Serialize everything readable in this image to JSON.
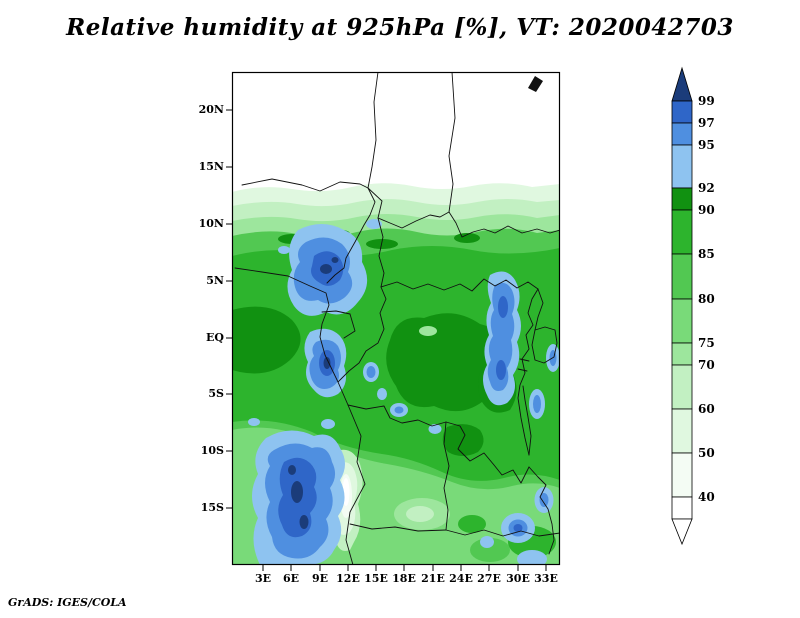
{
  "title": "Relative humidity at 925hPa [%], VT: 2020042703",
  "footer": "GrADS: IGES/COLA",
  "map": {
    "lat_ticks": [
      "20N",
      "15N",
      "10N",
      "5N",
      "EQ",
      "5S",
      "10S",
      "15S"
    ],
    "lon_ticks": [
      "3E",
      "6E",
      "9E",
      "12E",
      "15E",
      "18E",
      "21E",
      "24E",
      "27E",
      "30E",
      "33E"
    ]
  },
  "colorbar": {
    "labels": [
      "99",
      "97",
      "95",
      "92",
      "90",
      "85",
      "80",
      "75",
      "70",
      "60",
      "50",
      "40"
    ]
  },
  "palette": {
    "white": "#ffffff",
    "p40": "#f4fcf4",
    "p50": "#e0f8e0",
    "p60": "#c2f0c2",
    "p70": "#9de69d",
    "p75": "#79da79",
    "p80": "#52c852",
    "p85": "#2db42d",
    "p90": "#119111",
    "p92": "#8ec3f0",
    "p95": "#4f8fe0",
    "p97": "#2f66c8",
    "p99": "#1b3c7a",
    "border": "#111111"
  },
  "chart_data": {
    "type": "heatmap",
    "title": "Relative humidity at 925hPa [%], VT: 2020042703",
    "variable": "Relative humidity",
    "pressure_level_hPa": 925,
    "units": "%",
    "valid_time": "2020042703",
    "x_axis": {
      "label": "longitude",
      "ticks": [
        "3E",
        "6E",
        "9E",
        "12E",
        "15E",
        "18E",
        "21E",
        "24E",
        "27E",
        "30E",
        "33E"
      ],
      "range_deg_east": [
        0,
        34.5
      ]
    },
    "y_axis": {
      "label": "latitude",
      "ticks": [
        "20N",
        "15N",
        "10N",
        "5N",
        "EQ",
        "5S",
        "10S",
        "15S"
      ],
      "range_deg_north": [
        -20,
        23.3
      ]
    },
    "contour_levels": [
      40,
      50,
      60,
      70,
      75,
      80,
      85,
      90,
      92,
      95,
      97,
      99
    ],
    "band_colors": [
      {
        "range": "<40",
        "color": "#ffffff"
      },
      {
        "range": "40-50",
        "color": "#f4fcf4"
      },
      {
        "range": "50-60",
        "color": "#e0f8e0"
      },
      {
        "range": "60-70",
        "color": "#c2f0c2"
      },
      {
        "range": "70-75",
        "color": "#9de69d"
      },
      {
        "range": "75-80",
        "color": "#79da79"
      },
      {
        "range": "80-85",
        "color": "#52c852"
      },
      {
        "range": "85-90",
        "color": "#2db42d"
      },
      {
        "range": "90-92",
        "color": "#119111"
      },
      {
        "range": "92-95",
        "color": "#8ec3f0"
      },
      {
        "range": "95-97",
        "color": "#4f8fe0"
      },
      {
        "range": "97-99",
        "color": "#2f66c8"
      },
      {
        "range": ">99",
        "color": "#1b3c7a"
      }
    ],
    "legend_position": "right",
    "grid": false,
    "map_overlay": "African country borders, 0-34E / 20S-23N",
    "notable_features": [
      "RH > 95% (blue) over SE Nigeria / Cameroon highlands (~9-13E, 2-7N), coastal Gabon (~9-12E, 0-6S), Angola coast (~4-11E, 9-20S), African Great Lakes belt (~29-31E, 1N-5S) and SE patches (~28-33E, 13-17S)",
      "RH 80-92% (greens) over most of the Congo basin between ~9N and ~10S",
      "RH < 50% (white) north of ~12N and over interior Angola strip (~10.5-13E, 9-17S)"
    ],
    "source": "GrADS: IGES/COLA"
  }
}
